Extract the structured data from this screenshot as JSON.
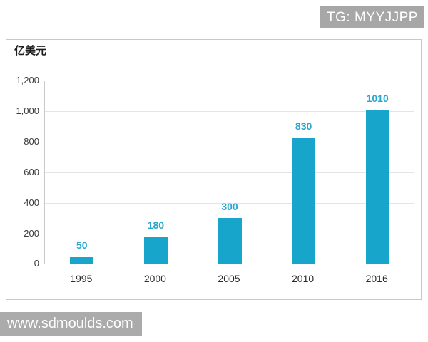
{
  "badge": {
    "text": "TG: MYYJJPP",
    "bg": "#a7a7a7",
    "fg": "#ffffff"
  },
  "watermark": {
    "text": "www.sdmoulds.com",
    "bg": "#ababab",
    "fg": "#ffffff"
  },
  "chart_data": {
    "type": "bar",
    "title": "",
    "unit_label": "亿美元",
    "categories": [
      "1995",
      "2000",
      "2005",
      "2010",
      "2016"
    ],
    "values": [
      50,
      180,
      300,
      830,
      1010
    ],
    "value_labels": [
      "50",
      "180",
      "300",
      "830",
      "1010"
    ],
    "xlabel": "",
    "ylabel": "亿美元",
    "ylim": [
      0,
      1200
    ],
    "yticks": [
      0,
      200,
      400,
      600,
      800,
      1000,
      1200
    ],
    "ytick_labels": [
      "0",
      "200",
      "400",
      "600",
      "800",
      "1,000",
      "1,200"
    ],
    "grid": true,
    "legend": "none",
    "bar_color": "#17a5cb",
    "value_label_color": "#27a7cd",
    "gridline_color": "#e4e4e4",
    "axis_line_color": "#c9c9c9",
    "tick_text_color": "#3a3a3a"
  }
}
